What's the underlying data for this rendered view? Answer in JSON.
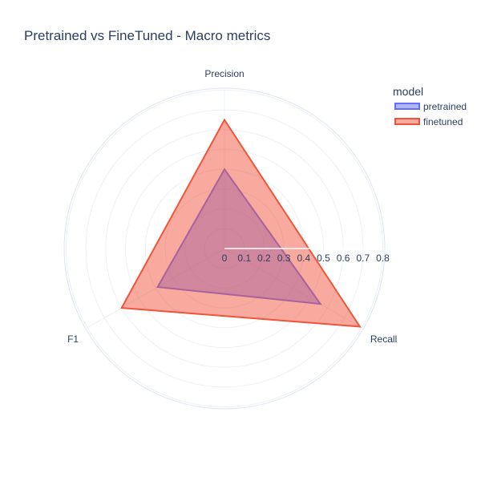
{
  "chart_data": {
    "type": "radar",
    "title": "Pretrained vs FineTuned - Macro metrics",
    "axes": [
      "Precision",
      "Recall",
      "F1"
    ],
    "radial_ticks": [
      "0",
      "0.1",
      "0.2",
      "0.3",
      "0.4",
      "0.5",
      "0.6",
      "0.7",
      "0.8"
    ],
    "radial_range": [
      0,
      0.81
    ],
    "grid": true,
    "legend": {
      "title": "model",
      "placement": "top-right"
    },
    "series": [
      {
        "name": "pretrained",
        "values": [
          0.4,
          0.56,
          0.39
        ],
        "color": "#636efa"
      },
      {
        "name": "finetuned",
        "values": [
          0.65,
          0.79,
          0.6
        ],
        "color": "#ef553b"
      }
    ]
  }
}
